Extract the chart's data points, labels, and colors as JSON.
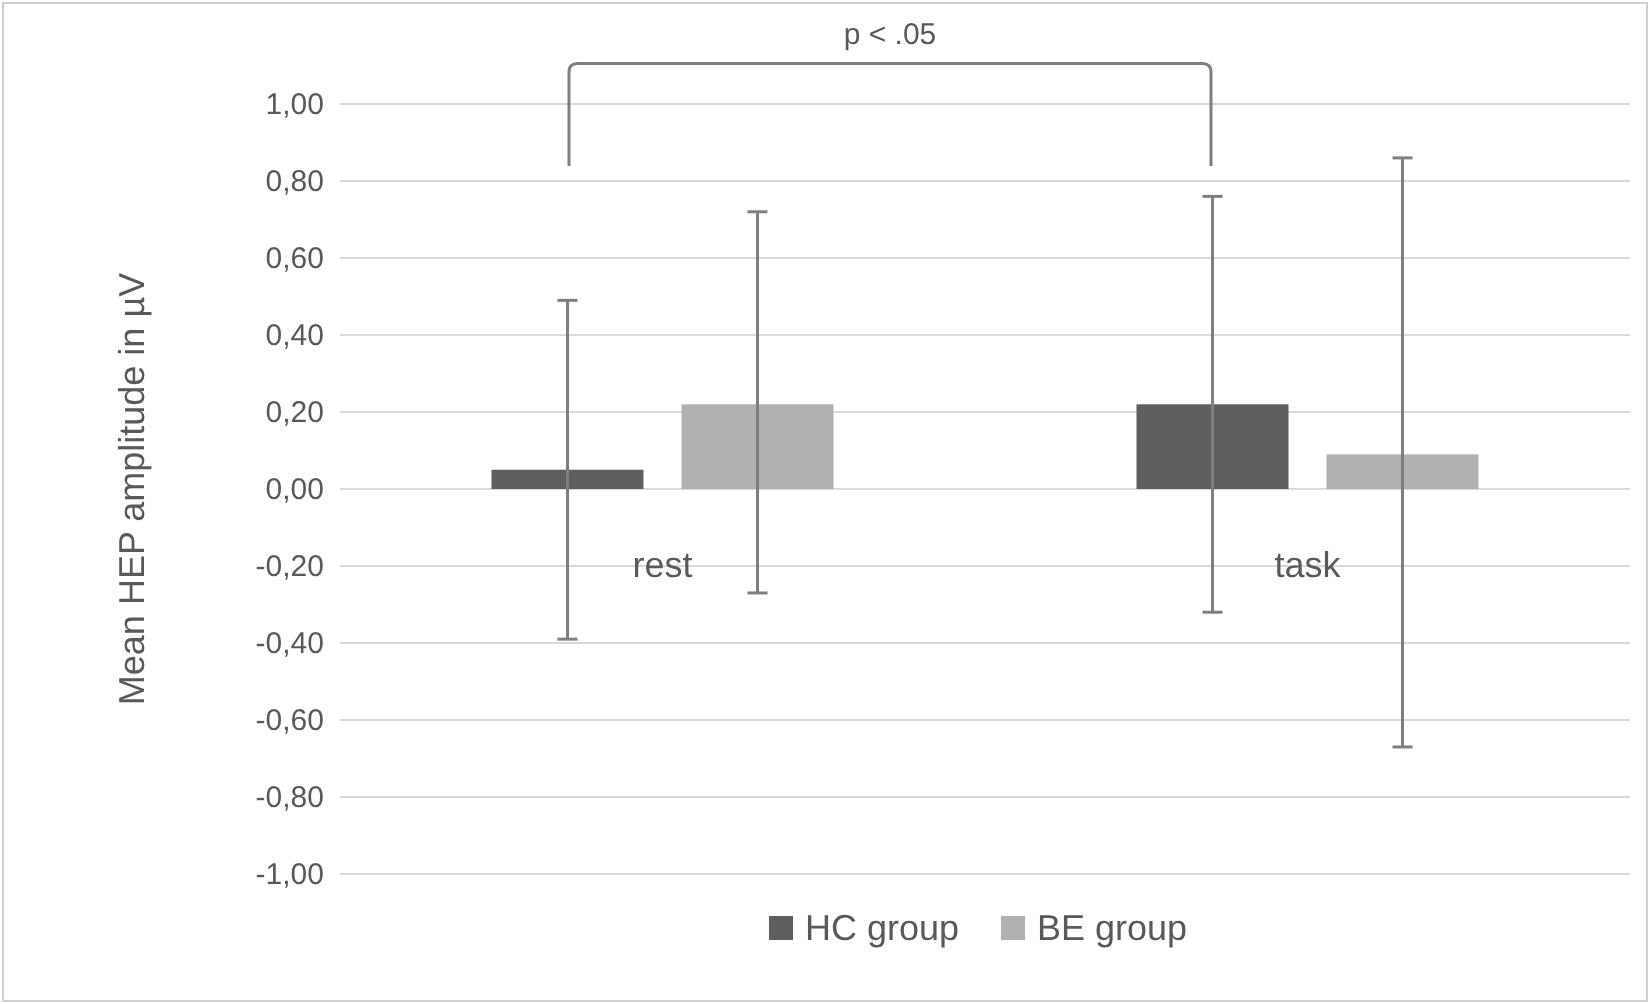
{
  "chart_data": {
    "type": "bar",
    "ylabel": "Mean HEP amplitude in µV",
    "categories": [
      "rest",
      "task"
    ],
    "series": [
      {
        "name": "HC group",
        "color": "#5f5f5f",
        "values": [
          0.05,
          0.22
        ],
        "errors": [
          [
            -0.39,
            0.49
          ],
          [
            -0.32,
            0.76
          ]
        ]
      },
      {
        "name": "BE group",
        "color": "#b1b1b1",
        "values": [
          0.22,
          0.09
        ],
        "errors": [
          [
            -0.27,
            0.72
          ],
          [
            -0.67,
            0.86
          ]
        ]
      }
    ],
    "ylim": [
      -1,
      1
    ],
    "yticks": [
      {
        "value": -1,
        "label": "-1,00"
      },
      {
        "value": -0.8,
        "label": "-0,80"
      },
      {
        "value": -0.6,
        "label": "-0,60"
      },
      {
        "value": -0.4,
        "label": "-0,40"
      },
      {
        "value": -0.2,
        "label": "-0,20"
      },
      {
        "value": 0,
        "label": "0,00"
      },
      {
        "value": 0.2,
        "label": "0,20"
      },
      {
        "value": 0.4,
        "label": "0,40"
      },
      {
        "value": 0.6,
        "label": "0,60"
      },
      {
        "value": 0.8,
        "label": "0,80"
      },
      {
        "value": 1,
        "label": "1,00"
      }
    ],
    "grid": "y",
    "legend": "bottom",
    "annotations": [
      "p < .05"
    ]
  }
}
